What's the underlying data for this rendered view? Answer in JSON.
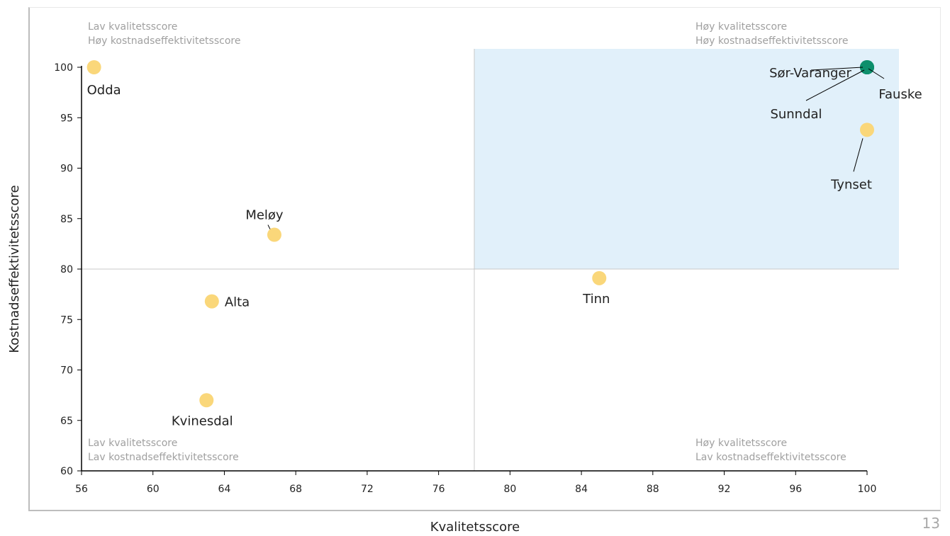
{
  "chart_data": {
    "type": "scatter",
    "xlabel": "Kvalitetsscore",
    "ylabel": "Kostnadseffektivitetsscore",
    "xlim": [
      56,
      100
    ],
    "ylim": [
      60,
      100
    ],
    "x_ticks": [
      "56",
      "60",
      "64",
      "68",
      "72",
      "76",
      "80",
      "84",
      "88",
      "92",
      "96",
      "100"
    ],
    "y_ticks": [
      "60",
      "65",
      "70",
      "75",
      "80",
      "85",
      "90",
      "95",
      "100"
    ],
    "divider_x": 78,
    "divider_y": 80,
    "highlight_quadrant": "top-right",
    "grid": false,
    "points": [
      {
        "label": "Odda",
        "x": 56.7,
        "y": 100,
        "color": "#fad77a"
      },
      {
        "label": "Meløy",
        "x": 66.8,
        "y": 83.4,
        "color": "#fad77a"
      },
      {
        "label": "Alta",
        "x": 63.3,
        "y": 76.8,
        "color": "#fad77a"
      },
      {
        "label": "Kvinesdal",
        "x": 63.0,
        "y": 67.0,
        "color": "#fad77a"
      },
      {
        "label": "Tinn",
        "x": 85.0,
        "y": 79.1,
        "color": "#fad77a"
      },
      {
        "label": "Tynset",
        "x": 100,
        "y": 93.8,
        "color": "#fad77a"
      },
      {
        "label": "Sør-Varanger",
        "x": 100,
        "y": 100,
        "color": "#0d8f6c"
      },
      {
        "label": "Sunndal",
        "x": 100,
        "y": 100,
        "color": "#0d8f6c"
      },
      {
        "label": "Fauske",
        "x": 100,
        "y": 100,
        "color": "#0d8f6c"
      }
    ],
    "quadrant_labels": {
      "top_left": [
        "Lav kvalitetsscore",
        "Høy kostnadseffektivitetsscore"
      ],
      "top_right": [
        "Høy kvalitetsscore",
        "Høy kostnadseffektivitetsscore"
      ],
      "bottom_left": [
        "Lav kvalitetsscore",
        "Lav kostnadseffektivitetsscore"
      ],
      "bottom_right": [
        "Høy kvalitetsscore",
        "Lav kostnadseffektivitetsscore"
      ]
    },
    "colors": {
      "highlight": "#e1f0fa",
      "axis": "#000000",
      "divider": "#c8c8c8"
    }
  },
  "page_number": "13"
}
